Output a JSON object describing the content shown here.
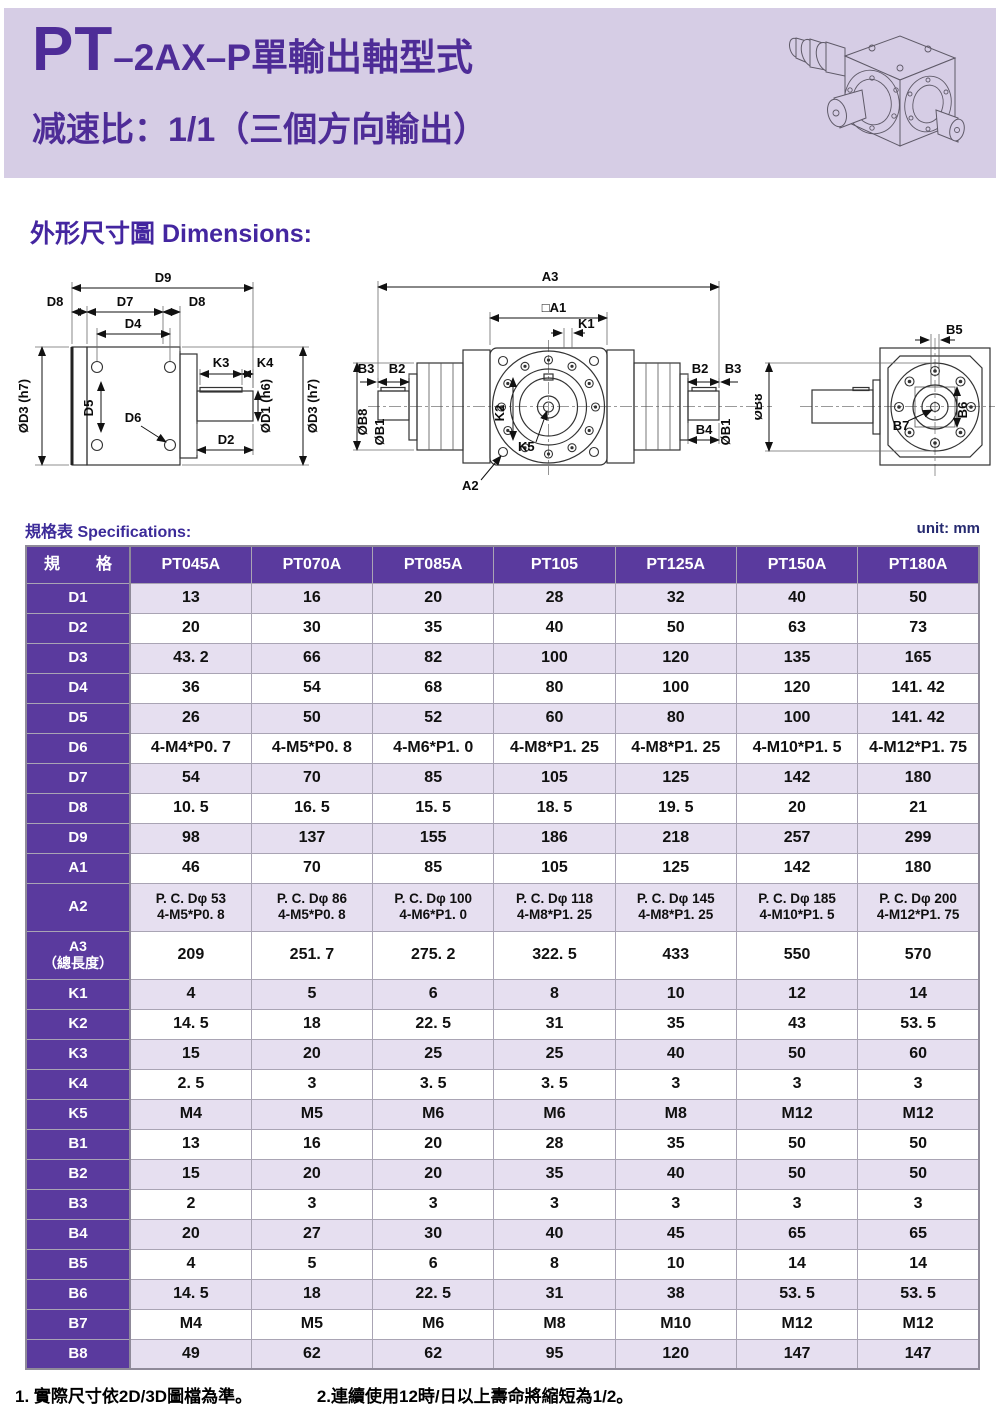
{
  "banner": {
    "title_prefix": "PT",
    "title_rest": "–2AX–P單輸出軸型式",
    "subtitle": "减速比：1/1（三個方向輸出）",
    "gearbox_icon": "isometric-gearbox-drawing"
  },
  "section": {
    "dimensions_title": "外形尺寸圖 Dimensions:"
  },
  "diagrams": {
    "left": {
      "d9": "D9",
      "d8l": "D8",
      "d7": "D7",
      "d8r": "D8",
      "d4": "D4",
      "k3": "K3",
      "k4": "K4",
      "od3l": "ØD3 (h7)",
      "d5": "D5",
      "d6": "D6",
      "d2": "D2",
      "od1": "ØD1 (h6)",
      "od3r": "ØD3 (h7)"
    },
    "middle": {
      "a3": "A3",
      "a1": "□A1",
      "k1": "K1",
      "b3l": "B3",
      "b2l": "B2",
      "ob8l": "ØB8",
      "ob1l": "ØB1",
      "k2": "K2",
      "k5": "K5",
      "b2r": "B2",
      "b3r": "B3",
      "ob1r": "ØB1",
      "b4": "B4",
      "a2": "A2"
    },
    "right": {
      "b5": "B5",
      "ob8": "ØB8",
      "b7": "B7",
      "b6": "B6"
    }
  },
  "specs": {
    "section_label": "規格表 Specifications:",
    "unit_label": "unit: mm",
    "columns": [
      "規　格",
      "PT045A",
      "PT070A",
      "PT085A",
      "PT105",
      "PT125A",
      "PT150A",
      "PT180A"
    ],
    "rows": [
      {
        "label": "D1",
        "values": [
          "13",
          "16",
          "20",
          "28",
          "32",
          "40",
          "50"
        ]
      },
      {
        "label": "D2",
        "values": [
          "20",
          "30",
          "35",
          "40",
          "50",
          "63",
          "73"
        ]
      },
      {
        "label": "D3",
        "values": [
          "43. 2",
          "66",
          "82",
          "100",
          "120",
          "135",
          "165"
        ]
      },
      {
        "label": "D4",
        "values": [
          "36",
          "54",
          "68",
          "80",
          "100",
          "120",
          "141. 42"
        ]
      },
      {
        "label": "D5",
        "values": [
          "26",
          "50",
          "52",
          "60",
          "80",
          "100",
          "141. 42"
        ]
      },
      {
        "label": "D6",
        "values": [
          "4-M4*P0. 7",
          "4-M5*P0. 8",
          "4-M6*P1. 0",
          "4-M8*P1. 25",
          "4-M8*P1. 25",
          "4-M10*P1. 5",
          "4-M12*P1. 75"
        ]
      },
      {
        "label": "D7",
        "values": [
          "54",
          "70",
          "85",
          "105",
          "125",
          "142",
          "180"
        ]
      },
      {
        "label": "D8",
        "values": [
          "10. 5",
          "16. 5",
          "15. 5",
          "18. 5",
          "19. 5",
          "20",
          "21"
        ]
      },
      {
        "label": "D9",
        "values": [
          "98",
          "137",
          "155",
          "186",
          "218",
          "257",
          "299"
        ]
      },
      {
        "label": "A1",
        "values": [
          "46",
          "70",
          "85",
          "105",
          "125",
          "142",
          "180"
        ]
      },
      {
        "label": "A2",
        "values": [
          [
            "P. C. Dφ 53",
            "4-M5*P0. 8"
          ],
          [
            "P. C. Dφ 86",
            "4-M5*P0. 8"
          ],
          [
            "P. C. Dφ 100",
            "4-M6*P1. 0"
          ],
          [
            "P. C. Dφ 118",
            "4-M8*P1. 25"
          ],
          [
            "P. C. Dφ 145",
            "4-M8*P1. 25"
          ],
          [
            "P. C. Dφ 185",
            "4-M10*P1. 5"
          ],
          [
            "P. C. Dφ 200",
            "4-M12*P1. 75"
          ]
        ]
      },
      {
        "label": [
          "A3",
          "（總長度）"
        ],
        "values": [
          "209",
          "251. 7",
          "275. 2",
          "322. 5",
          "433",
          "550",
          "570"
        ]
      },
      {
        "label": "K1",
        "values": [
          "4",
          "5",
          "6",
          "8",
          "10",
          "12",
          "14"
        ]
      },
      {
        "label": "K2",
        "values": [
          "14. 5",
          "18",
          "22. 5",
          "31",
          "35",
          "43",
          "53. 5"
        ]
      },
      {
        "label": "K3",
        "values": [
          "15",
          "20",
          "25",
          "25",
          "40",
          "50",
          "60"
        ]
      },
      {
        "label": "K4",
        "values": [
          "2. 5",
          "3",
          "3. 5",
          "3. 5",
          "3",
          "3",
          "3"
        ]
      },
      {
        "label": "K5",
        "values": [
          "M4",
          "M5",
          "M6",
          "M6",
          "M8",
          "M12",
          "M12"
        ]
      },
      {
        "label": "B1",
        "values": [
          "13",
          "16",
          "20",
          "28",
          "35",
          "50",
          "50"
        ]
      },
      {
        "label": "B2",
        "values": [
          "15",
          "20",
          "20",
          "35",
          "40",
          "50",
          "50"
        ]
      },
      {
        "label": "B3",
        "values": [
          "2",
          "3",
          "3",
          "3",
          "3",
          "3",
          "3"
        ]
      },
      {
        "label": "B4",
        "values": [
          "20",
          "27",
          "30",
          "40",
          "45",
          "65",
          "65"
        ]
      },
      {
        "label": "B5",
        "values": [
          "4",
          "5",
          "6",
          "8",
          "10",
          "14",
          "14"
        ]
      },
      {
        "label": "B6",
        "values": [
          "14. 5",
          "18",
          "22. 5",
          "31",
          "38",
          "53. 5",
          "53. 5"
        ]
      },
      {
        "label": "B7",
        "values": [
          "M4",
          "M5",
          "M6",
          "M8",
          "M10",
          "M12",
          "M12"
        ]
      },
      {
        "label": "B8",
        "values": [
          "49",
          "62",
          "62",
          "95",
          "120",
          "147",
          "147"
        ]
      }
    ]
  },
  "footnotes": {
    "note1": "1. 實際尺寸依2D/3D圖檔為準。",
    "note2": "2.連續使用12時/日以上壽命將縮短為1/2。"
  },
  "colors": {
    "banner_bg": "#d6cde5",
    "accent_purple": "#4e2c97",
    "table_header_bg": "#5a3a9e",
    "row_alt_bg": "#e6dff0"
  }
}
